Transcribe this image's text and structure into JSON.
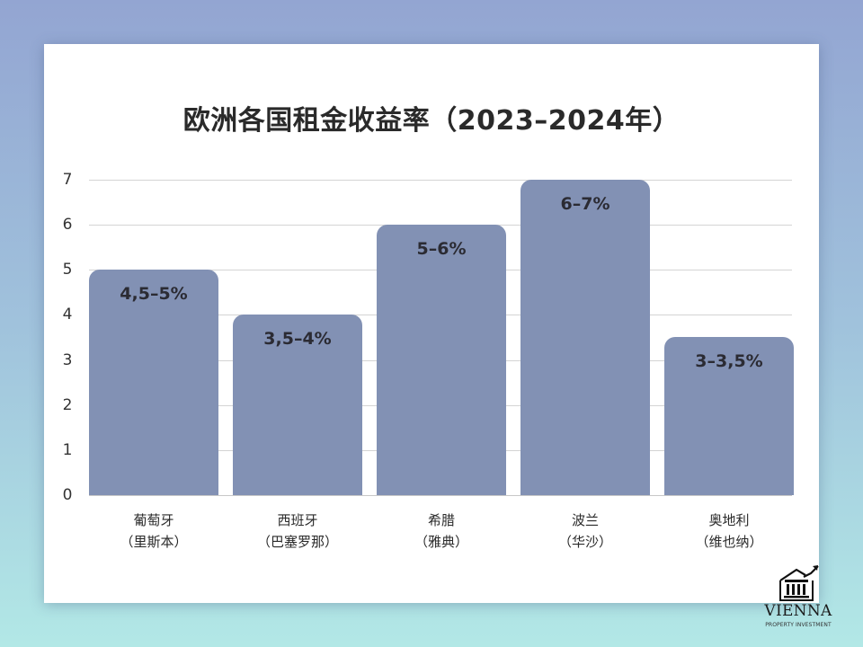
{
  "chart_data": {
    "type": "bar",
    "title": "欧洲各国租金收益率（2023–2024年）",
    "categories": [
      "葡萄牙（里斯本）",
      "西班牙（巴塞罗那）",
      "希腊（雅典）",
      "波兰（华沙）",
      "奥地利（维也纳）"
    ],
    "values": [
      5,
      4,
      6,
      7,
      3.5
    ],
    "data_labels": [
      "4,5–5%",
      "3,5–4%",
      "5–6%",
      "6–7%",
      "3–3,5%"
    ],
    "xlabel": "",
    "ylabel": "",
    "ylim": [
      0,
      7
    ],
    "yticks": [
      0,
      1,
      2,
      3,
      4,
      5,
      6,
      7
    ],
    "grid": true,
    "legend": "none",
    "bar_color": "#8291b4"
  },
  "chart": {
    "title": "欧洲各国租金收益率（2023–2024年）",
    "yticks": [
      "0",
      "1",
      "2",
      "3",
      "4",
      "5",
      "6",
      "7"
    ],
    "bars": [
      {
        "country": "葡萄牙",
        "city": "（里斯本）",
        "label": "4,5–5%",
        "value": 5
      },
      {
        "country": "西班牙",
        "city": "（巴塞罗那）",
        "label": "3,5–4%",
        "value": 4
      },
      {
        "country": "希腊",
        "city": "（雅典）",
        "label": "5–6%",
        "value": 6
      },
      {
        "country": "波兰",
        "city": "（华沙）",
        "label": "6–7%",
        "value": 7
      },
      {
        "country": "奥地利",
        "city": "（维也纳）",
        "label": "3–3,5%",
        "value": 3.5
      }
    ]
  },
  "logo": {
    "icon": "bank-building-growth-icon",
    "name": "VIENNA",
    "tagline": "PROPERTY INVESTMENT"
  },
  "colors": {
    "bar": "#8291b4",
    "background_top": "#93a5d2",
    "background_bottom": "#b2e8e6"
  }
}
